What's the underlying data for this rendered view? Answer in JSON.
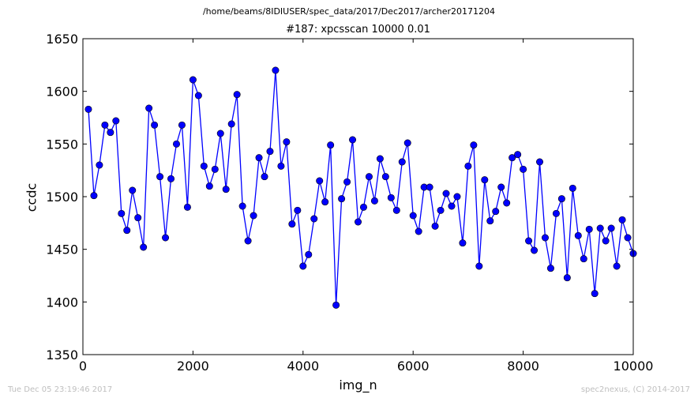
{
  "suptitle": "/home/beams/8IDIUSER/spec_data/2017/Dec2017/archer20171204",
  "footer": {
    "left": "Tue Dec 05 23:19:46 2017",
    "right": "spec2nexus, (C) 2014-2017"
  },
  "colors": {
    "series": "#0000ff",
    "marker_edge": "#000000",
    "axes": "#000000",
    "footer_text": "#bfbfbf"
  },
  "chart_data": {
    "type": "line",
    "title": "#187: xpcsscan 10000 0.01",
    "xlabel": "img_n",
    "ylabel": "ccdc",
    "xlim": [
      0,
      10000
    ],
    "ylim": [
      1350,
      1650
    ],
    "xticks": [
      "0",
      "2000",
      "4000",
      "6000",
      "8000",
      "10000"
    ],
    "yticks": [
      "1350",
      "1400",
      "1450",
      "1500",
      "1550",
      "1600",
      "1650"
    ],
    "grid": false,
    "legend": "none",
    "marker": "circle",
    "series": [
      {
        "x": [
          100,
          200,
          300,
          400,
          500,
          600,
          700,
          800,
          900,
          1000,
          1100,
          1200,
          1300,
          1400,
          1500,
          1600,
          1700,
          1800,
          1900,
          2000,
          2100,
          2200,
          2300,
          2400,
          2500,
          2600,
          2700,
          2800,
          2900,
          3000,
          3100,
          3200,
          3300,
          3400,
          3500,
          3600,
          3700,
          3800,
          3900,
          4000,
          4100,
          4200,
          4300,
          4400,
          4500,
          4600,
          4700,
          4800,
          4900,
          5000,
          5100,
          5200,
          5300,
          5400,
          5500,
          5600,
          5700,
          5800,
          5900,
          6000,
          6100,
          6200,
          6300,
          6400,
          6500,
          6600,
          6700,
          6800,
          6900,
          7000,
          7100,
          7200,
          7300,
          7400,
          7500,
          7600,
          7700,
          7800,
          7900,
          8000,
          8100,
          8200,
          8300,
          8400,
          8500,
          8600,
          8700,
          8800,
          8900,
          9000,
          9100,
          9200,
          9300,
          9400,
          9500,
          9600,
          9700,
          9800,
          9900,
          10000
        ],
        "values": [
          1583,
          1501,
          1530,
          1568,
          1561,
          1572,
          1484,
          1468,
          1506,
          1480,
          1452,
          1584,
          1568,
          1519,
          1461,
          1517,
          1550,
          1568,
          1490,
          1611,
          1596,
          1529,
          1510,
          1526,
          1560,
          1507,
          1569,
          1597,
          1491,
          1458,
          1482,
          1537,
          1519,
          1543,
          1620,
          1529,
          1552,
          1474,
          1487,
          1434,
          1445,
          1479,
          1515,
          1495,
          1549,
          1397,
          1498,
          1514,
          1554,
          1476,
          1490,
          1519,
          1496,
          1536,
          1519,
          1499,
          1487,
          1533,
          1551,
          1482,
          1467,
          1509,
          1509,
          1472,
          1487,
          1503,
          1491,
          1500,
          1456,
          1529,
          1549,
          1434,
          1516,
          1477,
          1486,
          1509,
          1494,
          1537,
          1540,
          1526,
          1458,
          1449,
          1533,
          1461,
          1432,
          1484,
          1498,
          1423,
          1508,
          1463,
          1441,
          1469,
          1408,
          1470,
          1458,
          1470,
          1434,
          1478,
          1461,
          1446
        ]
      }
    ]
  }
}
